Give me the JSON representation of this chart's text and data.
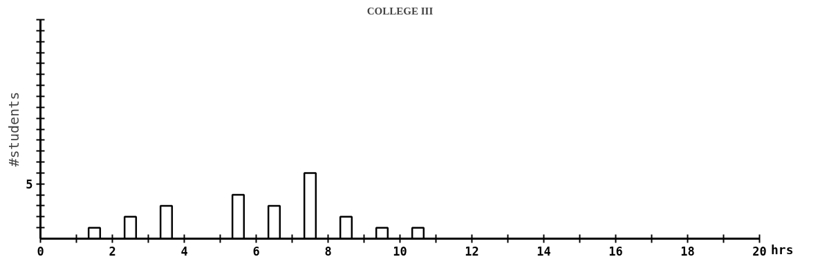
{
  "chart_data": {
    "type": "bar",
    "title": "COLLEGE III",
    "xlabel": "hrs",
    "ylabel": "#students",
    "x": [
      1.5,
      2.5,
      3.5,
      5.5,
      6.5,
      7.5,
      8.5,
      9.5,
      10.5
    ],
    "values": [
      1,
      2,
      3,
      4,
      3,
      6,
      2,
      1,
      1
    ],
    "color": "#000000",
    "xlim": [
      0,
      20
    ],
    "xticks": [
      0,
      {
        "value": 1,
        "label": null
      },
      2,
      {
        "value": 3,
        "label": null
      },
      4,
      {
        "value": 5,
        "label": null
      },
      6,
      {
        "value": 7,
        "label": null
      },
      8,
      {
        "value": 9,
        "label": null
      },
      10,
      {
        "value": 11,
        "label": null
      },
      12,
      {
        "value": 13,
        "label": null
      },
      14,
      {
        "value": 15,
        "label": null
      },
      16,
      {
        "value": 17,
        "label": null
      },
      18,
      {
        "value": 19,
        "label": null
      },
      20
    ],
    "ylim": [
      0,
      20
    ],
    "yticks": [
      {
        "value": 1,
        "label": null
      },
      {
        "value": 2,
        "label": null
      },
      {
        "value": 3,
        "label": null
      },
      {
        "value": 4,
        "label": null
      },
      5,
      {
        "value": 6,
        "label": null
      },
      {
        "value": 7,
        "label": null
      },
      {
        "value": 8,
        "label": null
      },
      {
        "value": 9,
        "label": null
      },
      {
        "value": 10,
        "label": null
      },
      {
        "value": 11,
        "label": null
      },
      {
        "value": 12,
        "label": null
      },
      {
        "value": 13,
        "label": null
      },
      {
        "value": 14,
        "label": null
      },
      {
        "value": 15,
        "label": null
      },
      {
        "value": 16,
        "label": null
      },
      {
        "value": 17,
        "label": null
      },
      {
        "value": 18,
        "label": null
      },
      {
        "value": 19,
        "label": null
      },
      {
        "value": 20,
        "label": null
      }
    ],
    "grid": false
  }
}
